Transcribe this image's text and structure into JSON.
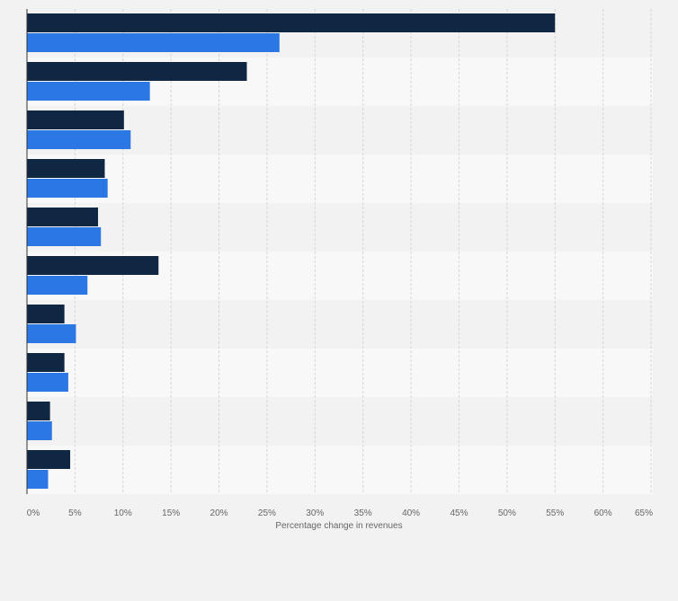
{
  "chart_data": {
    "type": "bar",
    "orientation": "horizontal",
    "categories": [
      "",
      "",
      "",
      "",
      "",
      "",
      "",
      "",
      "",
      ""
    ],
    "series": [
      {
        "values": [
          55.0,
          22.9,
          10.1,
          8.1,
          7.4,
          13.7,
          3.9,
          3.9,
          2.4,
          4.5
        ],
        "color": "#0f2742"
      },
      {
        "values": [
          26.3,
          12.8,
          10.8,
          8.4,
          7.7,
          6.3,
          5.1,
          4.3,
          2.6,
          2.2
        ],
        "color": "#2b78e4"
      }
    ],
    "xlim": [
      0,
      65
    ],
    "ticks": [
      "0%",
      "5%",
      "10%",
      "15%",
      "20%",
      "25%",
      "30%",
      "35%",
      "40%",
      "45%",
      "50%",
      "55%",
      "60%",
      "65%"
    ],
    "xlabel": "Percentage change in revenues",
    "ylabel": "",
    "title": "",
    "grid": true,
    "legend": "none"
  }
}
